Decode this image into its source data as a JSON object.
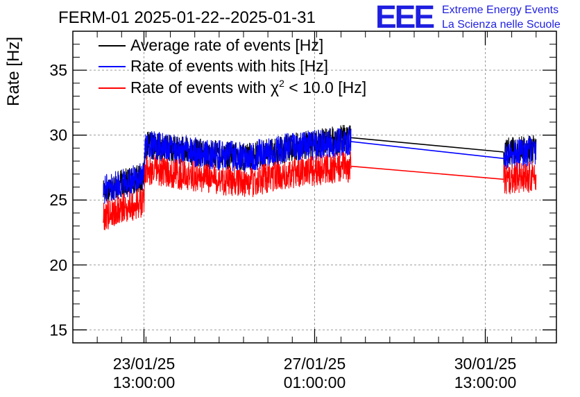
{
  "chart_data": {
    "type": "line",
    "title": "FERM-01 2025-01-22--2025-01-31",
    "ylabel": "Rate [Hz]",
    "xlabel": "",
    "ylim": [
      14,
      38
    ],
    "xlim": [
      "2025-01-22T02:00:00",
      "2025-02-01T00:00:00"
    ],
    "grid": true,
    "legend_position": "top-left",
    "y_ticks": [
      15,
      20,
      25,
      30,
      35
    ],
    "x_ticks": [
      {
        "date": "23/01/25",
        "time": "13:00:00",
        "t": "2025-01-23T13:00:00"
      },
      {
        "date": "27/01/25",
        "time": "01:00:00",
        "t": "2025-01-27T01:00:00"
      },
      {
        "date": "30/01/25",
        "time": "13:00:00",
        "t": "2025-01-30T13:00:00"
      }
    ],
    "series": [
      {
        "name": "Average rate of events [Hz]",
        "color": "#000000",
        "points": [
          {
            "t": "2025-01-22T17:00:00",
            "y": 25.8
          },
          {
            "t": "2025-01-23T13:00:00",
            "y": 26.8
          },
          {
            "t": "2025-01-23T13:30:00",
            "y": 29.2
          },
          {
            "t": "2025-01-24T18:00:00",
            "y": 28.6
          },
          {
            "t": "2025-01-25T15:00:00",
            "y": 28.3
          },
          {
            "t": "2025-01-26T12:00:00",
            "y": 29.0
          },
          {
            "t": "2025-01-27T19:00:00",
            "y": 29.8
          },
          {
            "t": "2025-01-30T22:00:00",
            "y": 28.7
          },
          {
            "t": "2025-01-31T14:00:00",
            "y": 29.0
          }
        ]
      },
      {
        "name": "Rate of events with hits [Hz]",
        "color": "#0000ff",
        "points": [
          {
            "t": "2025-01-22T17:00:00",
            "y": 25.8
          },
          {
            "t": "2025-01-23T13:00:00",
            "y": 26.8
          },
          {
            "t": "2025-01-23T13:30:00",
            "y": 29.2
          },
          {
            "t": "2025-01-24T18:00:00",
            "y": 28.6
          },
          {
            "t": "2025-01-25T15:00:00",
            "y": 28.3
          },
          {
            "t": "2025-01-26T12:00:00",
            "y": 29.0
          },
          {
            "t": "2025-01-27T19:00:00",
            "y": 29.5
          },
          {
            "t": "2025-01-30T22:00:00",
            "y": 28.2
          },
          {
            "t": "2025-01-31T14:00:00",
            "y": 28.9
          }
        ]
      },
      {
        "name": "Rate of events with χ² < 10.0 [Hz]",
        "color": "#ff0000",
        "points": [
          {
            "t": "2025-01-22T17:00:00",
            "y": 23.8
          },
          {
            "t": "2025-01-23T13:00:00",
            "y": 24.9
          },
          {
            "t": "2025-01-23T13:30:00",
            "y": 27.4
          },
          {
            "t": "2025-01-24T18:00:00",
            "y": 26.7
          },
          {
            "t": "2025-01-25T15:00:00",
            "y": 26.3
          },
          {
            "t": "2025-01-26T12:00:00",
            "y": 27.0
          },
          {
            "t": "2025-01-27T19:00:00",
            "y": 27.6
          },
          {
            "t": "2025-01-30T22:00:00",
            "y": 26.6
          },
          {
            "t": "2025-01-31T14:00:00",
            "y": 26.8
          }
        ]
      }
    ],
    "legend": [
      {
        "label_main": "Rate of events with ",
        "label_chi": "χ",
        "label_sup": "2",
        "label_tail": " < 10.0 [Hz]"
      }
    ],
    "brand": {
      "logo": "EEE",
      "line1": "Extreme Energy Events",
      "line2": "La Scienza nelle Scuole",
      "color": "#1f1fe0"
    }
  }
}
